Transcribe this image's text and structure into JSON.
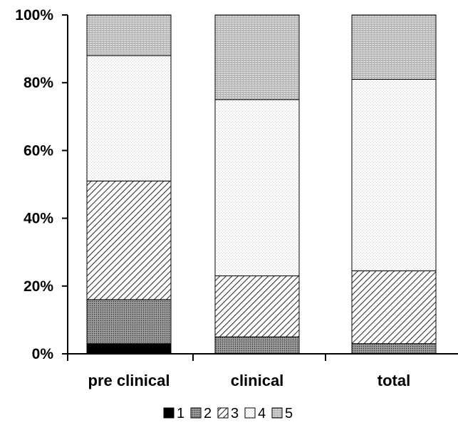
{
  "chart_data": {
    "type": "bar",
    "stacked": true,
    "categories": [
      "pre clinical",
      "clinical",
      "total"
    ],
    "series": [
      {
        "name": "1",
        "fill": "black",
        "values": [
          3,
          0,
          0
        ]
      },
      {
        "name": "2",
        "fill": "dense-dots",
        "values": [
          13,
          5,
          3
        ]
      },
      {
        "name": "3",
        "fill": "diagonal-hatch",
        "values": [
          35,
          18,
          21.5
        ]
      },
      {
        "name": "4",
        "fill": "light-dots",
        "values": [
          37,
          52,
          56.5
        ]
      },
      {
        "name": "5",
        "fill": "horizontal-lines",
        "values": [
          12,
          25,
          19
        ]
      }
    ],
    "yticks": [
      "0%",
      "20%",
      "40%",
      "60%",
      "80%",
      "100%"
    ],
    "ylim": [
      0,
      100
    ],
    "legend_position": "bottom",
    "grid": false
  }
}
